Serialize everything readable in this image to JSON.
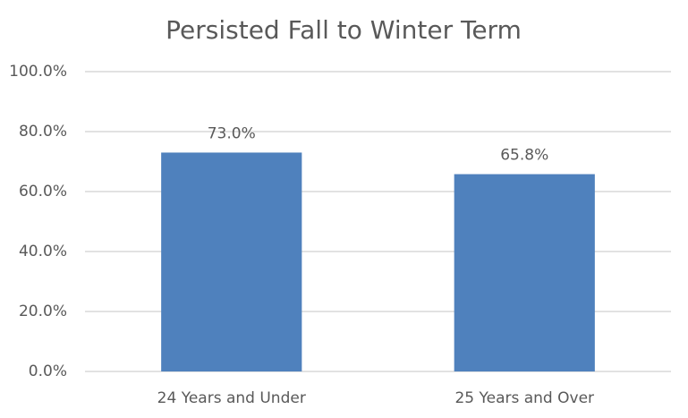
{
  "chart_data": {
    "type": "bar",
    "title": "Persisted Fall to Winter Term",
    "categories": [
      "24 Years and Under",
      "25 Years and Over"
    ],
    "values": [
      73.0,
      65.8
    ],
    "value_labels": [
      "73.0%",
      "65.8%"
    ],
    "color": "#4f81bd",
    "ylim": [
      0,
      100
    ],
    "yticks": [
      {
        "value": 0,
        "label": "0.0%"
      },
      {
        "value": 20,
        "label": "20.0%"
      },
      {
        "value": 40,
        "label": "40.0%"
      },
      {
        "value": 60,
        "label": "60.0%"
      },
      {
        "value": 80,
        "label": "80.0%"
      },
      {
        "value": 100,
        "label": "100.0%"
      }
    ],
    "grid": true
  }
}
